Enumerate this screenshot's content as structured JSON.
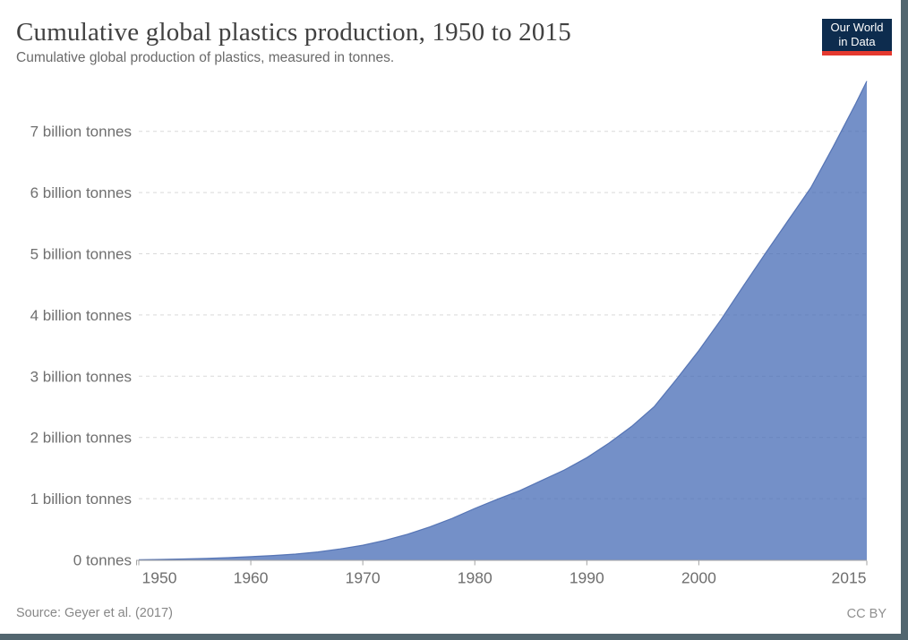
{
  "header": {
    "title": "Cumulative global plastics production, 1950 to 2015",
    "subtitle": "Cumulative global production of plastics, measured in tonnes.",
    "logo": {
      "line1": "Our World",
      "line2": "in Data"
    }
  },
  "footer": {
    "source": "Source: Geyer et al. (2017)",
    "license": "CC BY"
  },
  "colors": {
    "area_fill": "#3F65B3",
    "area_fill_opacity": 0.72,
    "area_stroke": "#4C6DB0",
    "logo_navy": "#0D2C4E",
    "logo_red": "#E5392F",
    "frame_border": "#52666F",
    "gridline": "#D9D9D9",
    "axis": "#A3A3A3",
    "tick_text": "#6F6F6F"
  },
  "chart_data": {
    "type": "area",
    "title": "Cumulative global plastics production, 1950 to 2015",
    "subtitle": "Cumulative global production of plastics, measured in tonnes.",
    "series_name": "Cumulative global plastics production",
    "unit": "billion tonnes",
    "xlabel": "",
    "ylabel": "",
    "xlim": [
      1950,
      2015
    ],
    "ylim": [
      0,
      8
    ],
    "grid": true,
    "legend": false,
    "x": [
      1950,
      1952,
      1954,
      1956,
      1958,
      1960,
      1962,
      1964,
      1966,
      1968,
      1970,
      1972,
      1974,
      1976,
      1978,
      1980,
      1982,
      1984,
      1986,
      1988,
      1990,
      1992,
      1994,
      1996,
      1998,
      2000,
      2002,
      2004,
      2006,
      2008,
      2010,
      2012,
      2014,
      2015
    ],
    "values": [
      0.002,
      0.007,
      0.014,
      0.023,
      0.036,
      0.053,
      0.072,
      0.095,
      0.13,
      0.18,
      0.24,
      0.32,
      0.42,
      0.54,
      0.68,
      0.84,
      0.99,
      1.13,
      1.3,
      1.47,
      1.67,
      1.91,
      2.18,
      2.5,
      2.95,
      3.42,
      3.93,
      4.48,
      5.02,
      5.55,
      6.08,
      6.75,
      7.45,
      7.82
    ],
    "yticks": [
      {
        "value": 0,
        "label": "0 tonnes"
      },
      {
        "value": 1,
        "label": "1 billion tonnes"
      },
      {
        "value": 2,
        "label": "2 billion tonnes"
      },
      {
        "value": 3,
        "label": "3 billion tonnes"
      },
      {
        "value": 4,
        "label": "4 billion tonnes"
      },
      {
        "value": 5,
        "label": "5 billion tonnes"
      },
      {
        "value": 6,
        "label": "6 billion tonnes"
      },
      {
        "value": 7,
        "label": "7 billion tonnes"
      }
    ],
    "xticks": [
      {
        "value": 1950,
        "label": "1950"
      },
      {
        "value": 1960,
        "label": "1960"
      },
      {
        "value": 1970,
        "label": "1970"
      },
      {
        "value": 1980,
        "label": "1980"
      },
      {
        "value": 1990,
        "label": "1990"
      },
      {
        "value": 2000,
        "label": "2000"
      },
      {
        "value": 2015,
        "label": "2015"
      }
    ]
  }
}
